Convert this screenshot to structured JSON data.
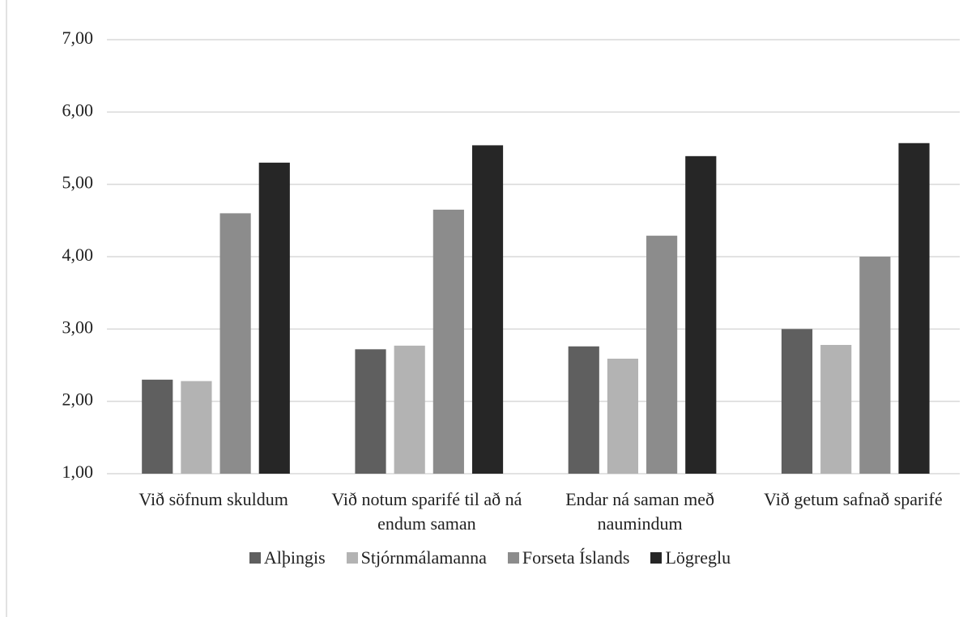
{
  "chart_data": {
    "type": "bar",
    "categories": [
      "Við söfnum skuldum",
      "Við notum sparifé til að ná endum saman",
      "Endar ná saman með naumindum",
      "Við getum safnað sparifé"
    ],
    "series": [
      {
        "name": "Alþingis",
        "color": "#5f5f5f",
        "values": [
          2.3,
          2.72,
          2.76,
          3.0
        ]
      },
      {
        "name": "Stjórnmálamanna",
        "color": "#b3b3b3",
        "values": [
          2.28,
          2.77,
          2.59,
          2.78
        ]
      },
      {
        "name": "Forseta Íslands",
        "color": "#8c8c8c",
        "values": [
          4.6,
          4.65,
          4.29,
          4.0
        ]
      },
      {
        "name": "Lögreglu",
        "color": "#262626",
        "values": [
          5.3,
          5.54,
          5.39,
          5.57
        ]
      }
    ],
    "ylim": [
      1,
      7
    ],
    "yticks": [
      {
        "value": 1,
        "label": "1,00"
      },
      {
        "value": 2,
        "label": "2,00"
      },
      {
        "value": 3,
        "label": "3,00"
      },
      {
        "value": 4,
        "label": "4,00"
      },
      {
        "value": 5,
        "label": "5,00"
      },
      {
        "value": 6,
        "label": "6,00"
      },
      {
        "value": 7,
        "label": "7,00"
      }
    ],
    "grid": true,
    "legend": "bottom"
  }
}
